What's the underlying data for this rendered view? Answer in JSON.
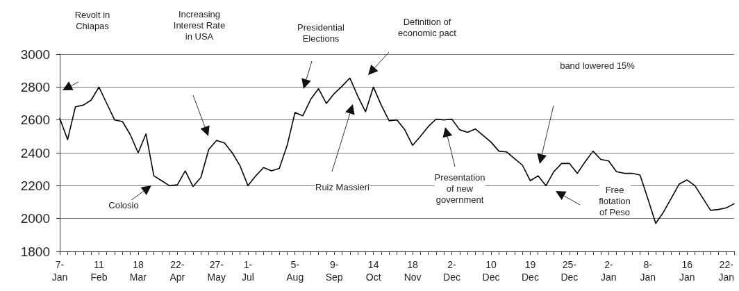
{
  "chart_data": {
    "type": "line",
    "categories": [
      "7-\nJan",
      null,
      null,
      null,
      null,
      "11\nFeb",
      null,
      null,
      null,
      null,
      "18\nMar",
      null,
      null,
      null,
      null,
      "22-\nApr",
      null,
      null,
      null,
      null,
      "27-\nMay",
      null,
      null,
      null,
      "1-\nJul",
      null,
      null,
      null,
      null,
      null,
      "5-\nAug",
      null,
      null,
      null,
      null,
      "9-\nSep",
      null,
      null,
      null,
      null,
      "14\nOct",
      null,
      null,
      null,
      null,
      "18\nNov",
      null,
      null,
      null,
      null,
      "2-\nDec",
      null,
      null,
      null,
      null,
      "10\nDec",
      null,
      null,
      null,
      null,
      "19\nDec",
      null,
      null,
      null,
      null,
      "25-\nDec",
      null,
      null,
      null,
      null,
      "2-\nJan",
      null,
      null,
      null,
      null,
      "8-\nJan",
      null,
      null,
      null,
      null,
      "16\nJan",
      null,
      null,
      null,
      null,
      "22-\nJan",
      null
    ],
    "series": [
      {
        "color": "#000000",
        "values": [
          2610,
          2480,
          2680,
          2690,
          2720,
          2800,
          2700,
          2600,
          2590,
          2510,
          2400,
          2515,
          2260,
          2230,
          2200,
          2205,
          2290,
          2195,
          2250,
          2420,
          2475,
          2460,
          2400,
          2320,
          2200,
          2260,
          2310,
          2290,
          2305,
          2445,
          2645,
          2625,
          2725,
          2790,
          2700,
          2760,
          2805,
          2855,
          2745,
          2650,
          2800,
          2690,
          2595,
          2600,
          2540,
          2445,
          2500,
          2560,
          2605,
          2600,
          2605,
          2540,
          2525,
          2545,
          2505,
          2465,
          2410,
          2405,
          2365,
          2325,
          2230,
          2260,
          2200,
          2285,
          2335,
          2335,
          2275,
          2345,
          2410,
          2360,
          2350,
          2285,
          2275,
          2275,
          2265,
          2120,
          1970,
          2040,
          2125,
          2210,
          2235,
          2200,
          2125,
          2050,
          2055,
          2065,
          2090
        ]
      }
    ],
    "ylim": [
      1800,
      3000
    ],
    "yticks": [
      1800,
      2000,
      2200,
      2400,
      2600,
      2800,
      3000
    ],
    "grid": "y",
    "marker": "none",
    "line_style": "solid",
    "annotations": [
      "Revolt in\nChiapas",
      "Increasing\nInterest Rate\nin USA",
      "Colosio",
      "Presidential\nElections",
      "Ruiz Massieri",
      "Definition of\neconomic pact",
      "Presentation\nof new\ngovernment",
      "band lowered 15%",
      "Free\nflotation\nof Peso"
    ]
  }
}
